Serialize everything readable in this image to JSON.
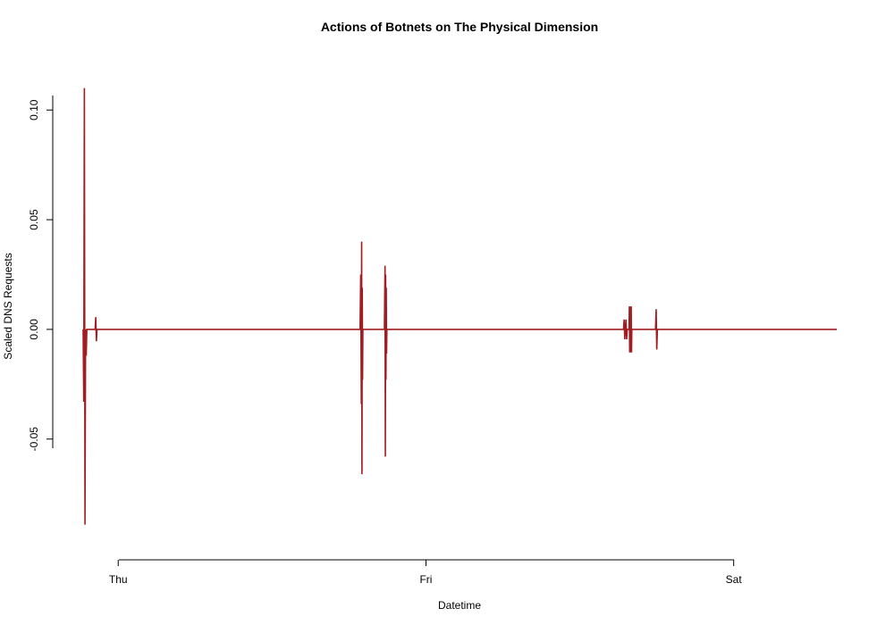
{
  "chart_data": {
    "type": "line",
    "title": "Actions of Botnets on The Physical Dimension",
    "xlabel": "Datetime",
    "ylabel": "Scaled DNS Requests",
    "x_ticks": [
      "Thu",
      "Fri",
      "Sat"
    ],
    "y_ticks": [
      "-0.05",
      "0.00",
      "0.05",
      "0.10"
    ],
    "y_tick_values": [
      -0.05,
      0.0,
      0.05,
      0.1
    ],
    "x_tick_days": [
      0,
      1,
      2
    ],
    "xlim_days": [
      -0.114,
      2.335
    ],
    "ylim": [
      -0.0965,
      0.118
    ],
    "grid": false,
    "legend": "none",
    "line_color": "#a11d21",
    "series": [
      {
        "x_days": [
          -0.114,
          -0.112,
          -0.11,
          -0.108,
          -0.106,
          -0.104,
          -0.102,
          -0.1,
          -0.098,
          -0.096,
          -0.094,
          -0.075,
          -0.073,
          -0.071,
          -0.069,
          0.786,
          0.788,
          0.79,
          0.791,
          0.792,
          0.793,
          0.794,
          0.795,
          0.796,
          0.797,
          0.798,
          0.865,
          0.867,
          0.868,
          0.869,
          0.87,
          0.871,
          0.872,
          0.873,
          0.874,
          0.875,
          0.876,
          1.642,
          1.644,
          1.646,
          1.648,
          1.65,
          1.652,
          1.654,
          1.656,
          1.658,
          1.66,
          1.661,
          1.662,
          1.663,
          1.664,
          1.665,
          1.666,
          1.667,
          1.668,
          1.669,
          1.67,
          1.671,
          1.673,
          1.746,
          1.748,
          1.75,
          1.752,
          2.335
        ],
        "y": [
          0.0,
          -0.033,
          0.11,
          -0.089,
          0.0,
          -0.012,
          0.0,
          0.0,
          0.0,
          0.0,
          0.0,
          0.0,
          0.0056,
          -0.0054,
          0.0,
          0.0,
          0.025,
          -0.034,
          0.04,
          -0.066,
          0.019,
          -0.023,
          0.0,
          0.0,
          0.0,
          0.0,
          0.0,
          0.029,
          -0.058,
          0.025,
          -0.023,
          0.019,
          -0.011,
          0.0,
          0.0,
          0.0,
          0.0,
          0.0,
          0.0045,
          -0.0045,
          0.0,
          0.0045,
          -0.0045,
          0.0,
          0.0,
          0.0,
          0.0,
          0.0105,
          -0.0105,
          0.0105,
          -0.0105,
          0.0105,
          -0.0105,
          0.0105,
          -0.0105,
          0.0,
          0.0,
          0.0,
          0.0,
          0.0,
          0.0092,
          -0.0092,
          0.0,
          0.0
        ]
      }
    ]
  }
}
